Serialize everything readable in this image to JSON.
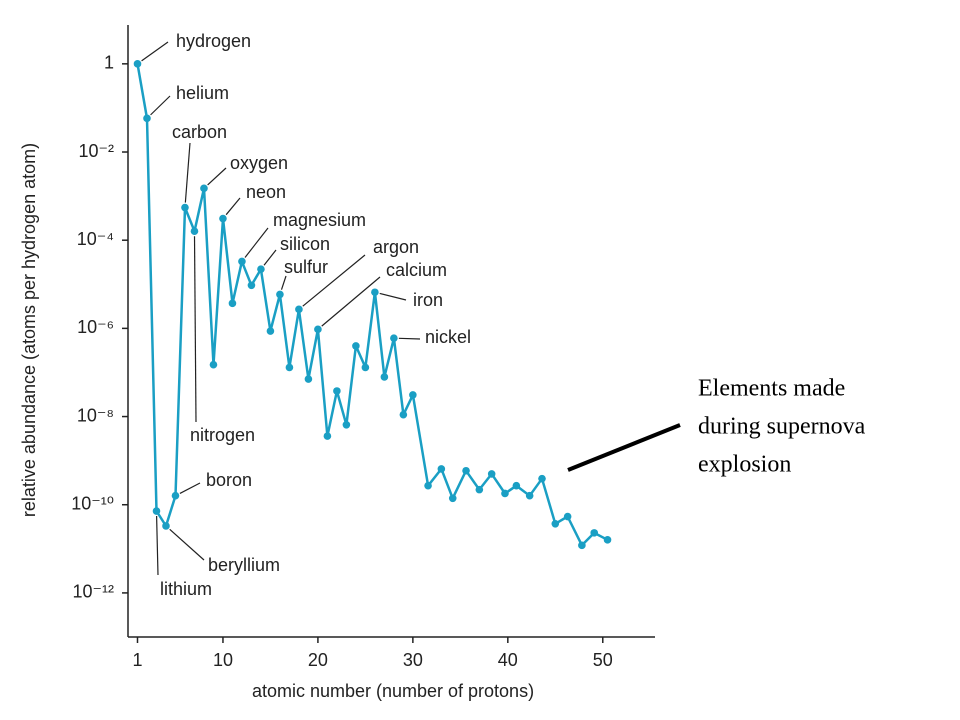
{
  "chart_data": {
    "type": "line",
    "xlabel": "atomic number (number of protons)",
    "ylabel": "relative abundance (atoms per hydrogen atom)",
    "yscale": "log",
    "color": "#1a9fc4",
    "x": [
      1,
      2,
      3,
      4,
      5,
      6,
      7,
      8,
      9,
      10,
      11,
      12,
      13,
      14,
      15,
      16,
      17,
      18,
      19,
      20,
      21,
      22,
      23,
      24,
      25,
      26,
      27,
      28,
      29,
      30,
      31.6,
      33.0,
      34.2,
      35.6,
      37.0,
      38.3,
      39.7,
      40.9,
      42.3,
      43.6,
      45.0,
      46.3,
      47.8,
      49.1,
      50.5
    ],
    "values": [
      1,
      0.058,
      7.2e-11,
      3.3e-11,
      1.6e-10,
      0.00055,
      0.00016,
      0.0015,
      1.5e-07,
      0.00031,
      3.7e-06,
      3.3e-05,
      9.5e-06,
      2.2e-05,
      8.7e-07,
      5.9e-06,
      1.3e-07,
      2.7e-06,
      7.1e-08,
      9.5e-07,
      3.6e-09,
      3.8e-08,
      6.5e-09,
      4e-07,
      1.3e-07,
      6.6e-06,
      7.9e-08,
      6e-07,
      1.1e-08,
      3.1e-08,
      2.7e-10,
      6.5e-10,
      1.4e-10,
      5.9e-10,
      2.2e-10,
      5e-10,
      1.8e-10,
      2.7e-10,
      1.6e-10,
      3.9e-10,
      3.7e-11,
      5.4e-11,
      1.2e-11,
      2.3e-11,
      1.6e-11
    ],
    "xlim": [
      0,
      55.5
    ],
    "xticks": [
      1,
      10,
      20,
      30,
      40,
      50
    ],
    "ylim": [
      1e-13,
      7.6
    ],
    "yticks": [
      1,
      {
        "value": 0.01,
        "label": "10⁻²"
      },
      {
        "value": 0.0001,
        "label": "10⁻⁴"
      },
      {
        "value": 1e-06,
        "label": "10⁻⁶"
      },
      {
        "value": 1e-08,
        "label": "10⁻⁸"
      },
      {
        "value": 1e-10,
        "label": "10⁻¹⁰"
      },
      {
        "value": 1e-12,
        "label": "10⁻¹²"
      }
    ],
    "annotations": [
      {
        "text": "hydrogen",
        "x": 1
      },
      {
        "text": "helium",
        "x": 2
      },
      {
        "text": "carbon",
        "x": 6
      },
      {
        "text": "oxygen",
        "x": 8
      },
      {
        "text": "neon",
        "x": 10
      },
      {
        "text": "magnesium",
        "x": 12
      },
      {
        "text": "silicon",
        "x": 14
      },
      {
        "text": "sulfur",
        "x": 16
      },
      {
        "text": "argon",
        "x": 18
      },
      {
        "text": "calcium",
        "x": 20
      },
      {
        "text": "iron",
        "x": 26
      },
      {
        "text": "nickel",
        "x": 28
      },
      {
        "text": "nitrogen",
        "x": 7
      },
      {
        "text": "boron",
        "x": 5
      },
      {
        "text": "beryllium",
        "x": 4
      },
      {
        "text": "lithium",
        "x": 3
      }
    ],
    "note": [
      "Elements made",
      "during supernova",
      "explosion"
    ]
  }
}
